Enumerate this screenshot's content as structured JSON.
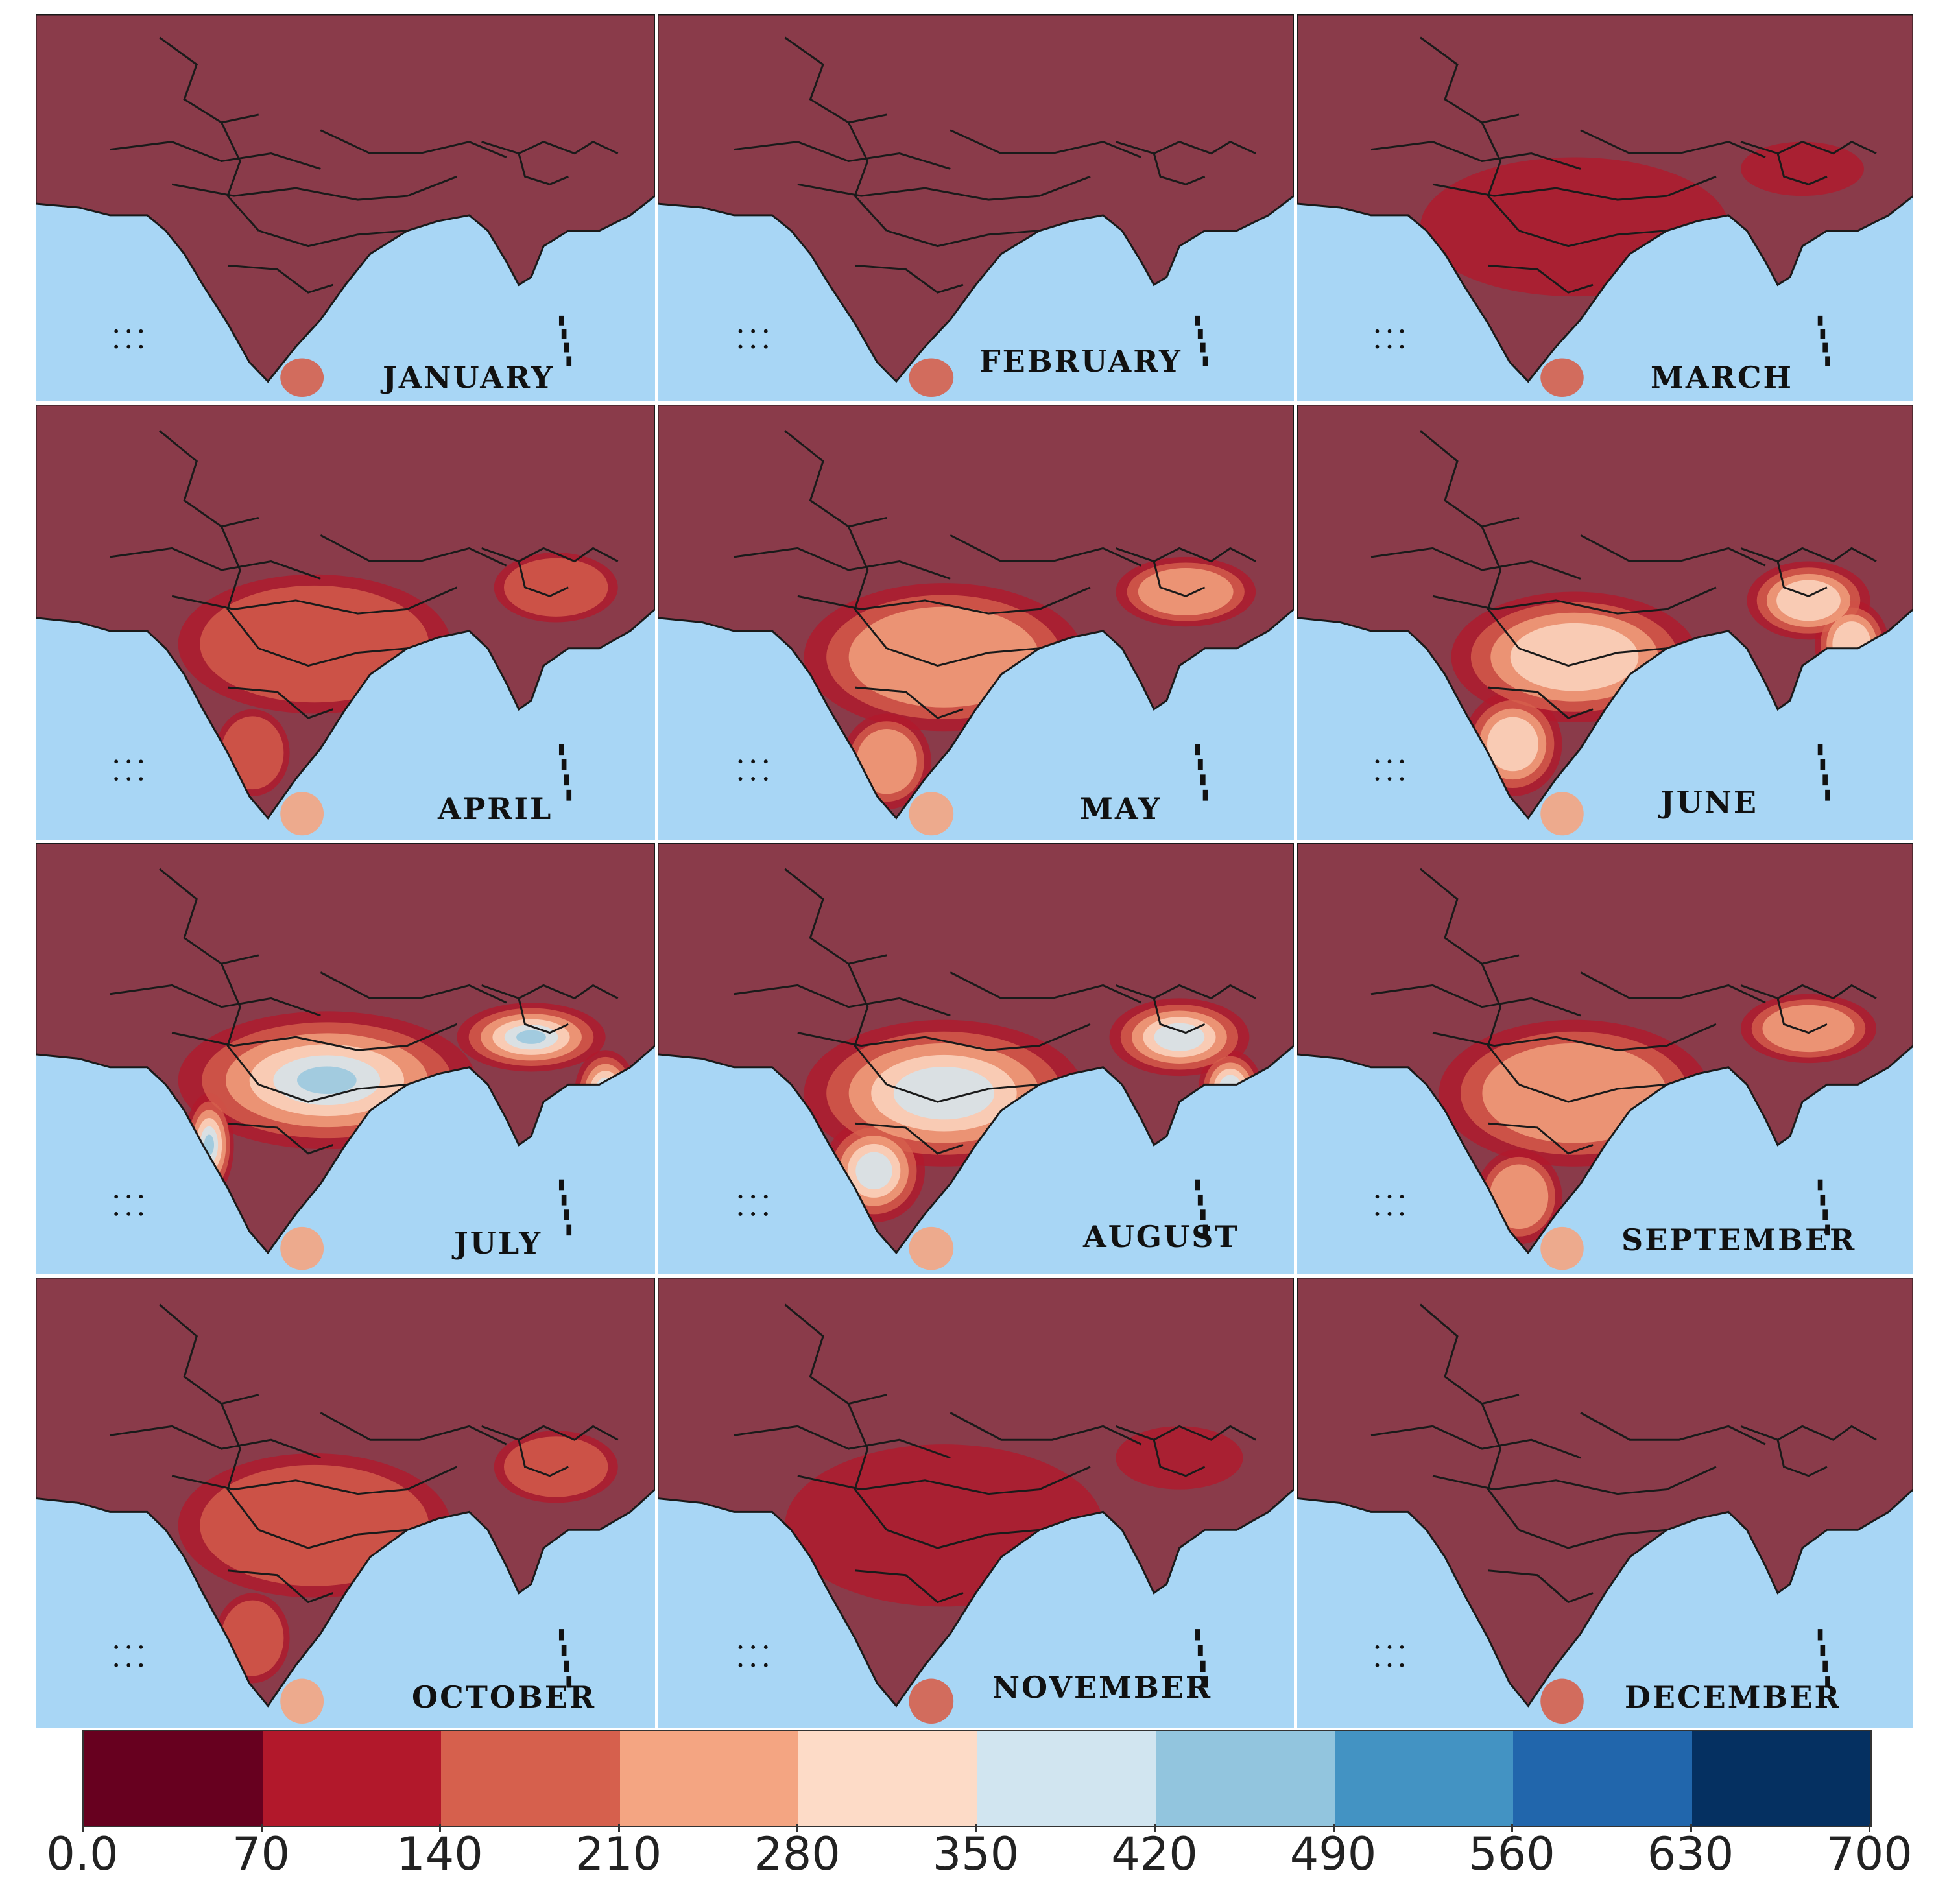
{
  "panels": [
    {
      "month": "JANUARY",
      "level": 0
    },
    {
      "month": "FEBRUARY",
      "level": 0
    },
    {
      "month": "MARCH",
      "level": 1
    },
    {
      "month": "APRIL",
      "level": 2
    },
    {
      "month": "MAY",
      "level": 3
    },
    {
      "month": "JUNE",
      "level": 4
    },
    {
      "month": "JULY",
      "level": 6
    },
    {
      "month": "AUGUST",
      "level": 5
    },
    {
      "month": "SEPTEMBER",
      "level": 3
    },
    {
      "month": "OCTOBER",
      "level": 2
    },
    {
      "month": "NOVEMBER",
      "level": 1
    },
    {
      "month": "DECEMBER",
      "level": 0
    }
  ],
  "colorbar": {
    "ticks": [
      "0.0",
      "70",
      "140",
      "210",
      "280",
      "350",
      "420",
      "490",
      "560",
      "630",
      "700"
    ],
    "colors": [
      "#67001f",
      "#b2182b",
      "#d6604d",
      "#f4a582",
      "#fddbc7",
      "#d1e5f0",
      "#92c5de",
      "#4393c3",
      "#2166ac",
      "#053061"
    ]
  },
  "map_colors": {
    "ocean": "#a8d6f5",
    "land_base": "#8a3b4a"
  }
}
